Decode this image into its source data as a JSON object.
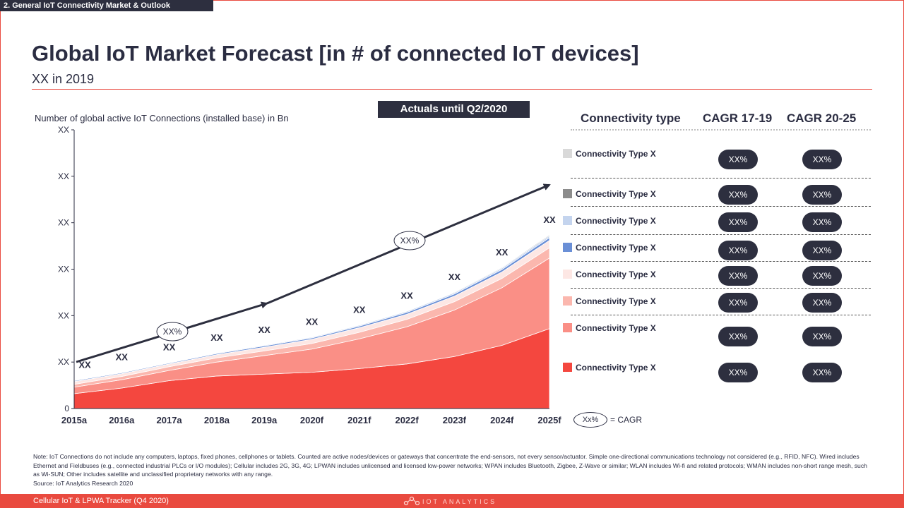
{
  "header": {
    "section_tag": "2. General IoT Connectivity Market & Outlook",
    "title": "Global IoT Market Forecast [in # of connected IoT devices]",
    "subtitle": "XX in 2019"
  },
  "colors": {
    "accent": "#e94a3f",
    "navy": "#2d2f3f"
  },
  "chart_data": {
    "type": "area",
    "stacked": true,
    "ylabel": "Number  of global active IoT Connections  (installed base) in Bn",
    "y_ticks": [
      "0",
      "XX",
      "XX",
      "XX",
      "XX",
      "XX",
      "XX"
    ],
    "x": [
      "2015a",
      "2016a",
      "2017a",
      "2018a",
      "2019a",
      "2020f",
      "2021f",
      "2022f",
      "2023f",
      "2024f",
      "2025f"
    ],
    "ylim": [
      0,
      30
    ],
    "grid": false,
    "banner": "Actuals until Q2/2020",
    "data_labels": [
      "XX",
      "XX",
      "XX",
      "XX",
      "XX",
      "XX",
      "XX",
      "XX",
      "XX",
      "XX",
      "XX"
    ],
    "cagr_annotations": [
      "XX%",
      "XX%"
    ],
    "series": [
      {
        "color": "#f4473f",
        "values": [
          1.6,
          2.2,
          3.0,
          3.5,
          3.7,
          3.9,
          4.3,
          4.8,
          5.6,
          6.8,
          8.6
        ]
      },
      {
        "color": "#fa8f86",
        "values": [
          0.7,
          0.9,
          1.1,
          1.5,
          2.0,
          2.5,
          3.2,
          4.0,
          5.0,
          6.2,
          7.6
        ]
      },
      {
        "color": "#fbb7ae",
        "values": [
          0.3,
          0.35,
          0.4,
          0.45,
          0.5,
          0.6,
          0.7,
          0.8,
          0.9,
          1.0,
          1.1
        ]
      },
      {
        "color": "#fde7e4",
        "values": [
          0.3,
          0.3,
          0.3,
          0.35,
          0.4,
          0.45,
          0.5,
          0.55,
          0.6,
          0.7,
          0.8
        ]
      },
      {
        "color": "#6a8fd6",
        "values": [
          0.1,
          0.1,
          0.1,
          0.12,
          0.14,
          0.15,
          0.17,
          0.2,
          0.23,
          0.26,
          0.3
        ]
      },
      {
        "color": "#c4d4ee",
        "values": [
          0.05,
          0.05,
          0.06,
          0.07,
          0.08,
          0.09,
          0.1,
          0.12,
          0.14,
          0.16,
          0.2
        ]
      },
      {
        "color": "#8c8c8c",
        "values": [
          0.05,
          0.05,
          0.05,
          0.05,
          0.05,
          0.05,
          0.06,
          0.06,
          0.07,
          0.08,
          0.1
        ]
      },
      {
        "color": "#d9d9d9",
        "values": [
          0.05,
          0.05,
          0.05,
          0.05,
          0.05,
          0.05,
          0.05,
          0.05,
          0.05,
          0.05,
          0.05
        ]
      }
    ]
  },
  "table": {
    "headers": [
      "Connectivity type",
      "CAGR 17-19",
      "CAGR 20-25"
    ],
    "rows": [
      {
        "label": "Connectivity Type X",
        "swatch": "#d9d9d9",
        "cagr_1719": "XX%",
        "cagr_2025": "XX%"
      },
      {
        "label": "Connectivity Type X",
        "swatch": "#8c8c8c",
        "cagr_1719": "XX%",
        "cagr_2025": "XX%"
      },
      {
        "label": "Connectivity Type X",
        "swatch": "#c4d4ee",
        "cagr_1719": "XX%",
        "cagr_2025": "XX%"
      },
      {
        "label": "Connectivity Type X",
        "swatch": "#6a8fd6",
        "cagr_1719": "XX%",
        "cagr_2025": "XX%"
      },
      {
        "label": "Connectivity Type X",
        "swatch": "#fde7e4",
        "cagr_1719": "XX%",
        "cagr_2025": "XX%"
      },
      {
        "label": "Connectivity Type X",
        "swatch": "#fbb7ae",
        "cagr_1719": "XX%",
        "cagr_2025": "XX%"
      },
      {
        "label": "Connectivity Type X",
        "swatch": "#fa8f86",
        "cagr_1719": "XX%",
        "cagr_2025": "XX%"
      },
      {
        "label": "Connectivity Type X",
        "swatch": "#f4473f",
        "cagr_1719": "XX%",
        "cagr_2025": "XX%"
      }
    ]
  },
  "cagr_legend": {
    "oval_text": "Xx%",
    "text": "= CAGR"
  },
  "note": {
    "text": "Note: IoT Connections do not include any computers, laptops, fixed phones, cellphones or tablets. Counted are active nodes/devices or gateways that concentrate the end-sensors, not every sensor/actuator. Simple one-directional communications technology not considered (e.g., RFID, NFC). Wired includes Ethernet and Fieldbuses (e.g., connected industrial PLCs or I/O modules); Cellular includes 2G, 3G, 4G;  LPWAN includes unlicensed and licensed low-power networks; WPAN includes Bluetooth, Zigbee, Z-Wave or similar; WLAN includes Wi-fi and related protocols; WMAN includes non-short range mesh, such as Wi-SUN; Other includes satellite and unclassified proprietary networks with any range.",
    "source": "Source: IoT Analytics Research 2020"
  },
  "footer": {
    "left": "Cellular IoT & LPWA Tracker (Q4 2020)",
    "brand": "IOT ANALYTICS"
  }
}
